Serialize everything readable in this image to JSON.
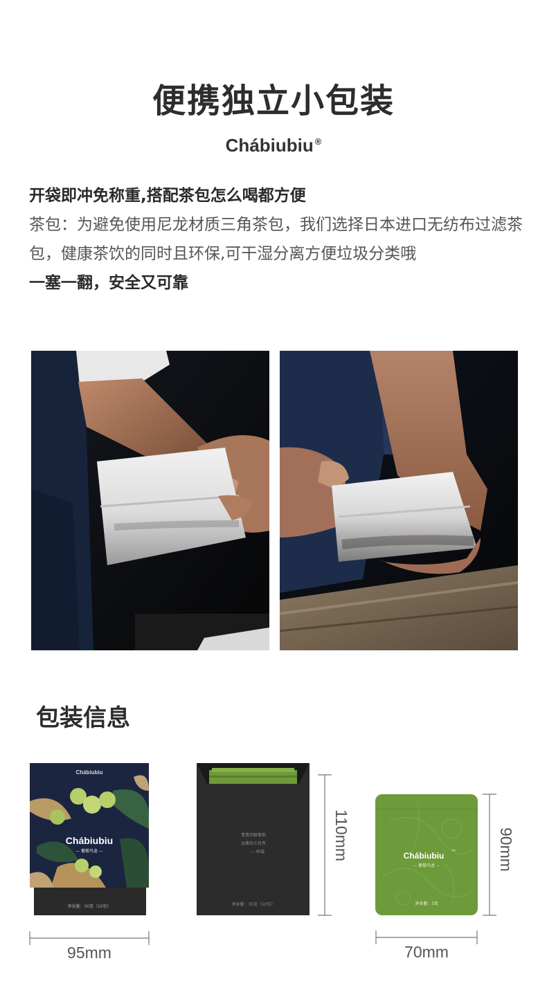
{
  "header": {
    "title": "便携独立小包装",
    "brand": "Chábiubiu",
    "brand_mark": "®"
  },
  "intro": {
    "headline": "开袋即冲免称重,搭配茶包怎么喝都方便",
    "body": "茶包：为避免使用尼龙材质三角茶包，我们选择日本进口无纺布过滤茶包，健康茶饮的同时且环保,可干湿分离方便垃圾分类哦",
    "tagline": "一塞一翻，安全又可靠"
  },
  "photos": [
    {
      "name": "hand-holding-tea-bag-photo"
    },
    {
      "name": "hands-opening-tea-bag-photo"
    }
  ],
  "packaging": {
    "title": "包装信息",
    "box_front": {
      "brand": "Chábiubiu",
      "logo": "Chábiubiu",
      "subtitle": "— 葡萄乌龙 —",
      "net": "净含量：30克（10包）"
    },
    "box_open": {
      "poem_lines": [
        "青青的野葡萄",
        "淡黄的小月亮",
        "— 树城"
      ],
      "net": "净含量：30克（10包）"
    },
    "sachet": {
      "logo": "Chábiubiu",
      "tm": "™",
      "subtitle": "— 葡萄乌龙 —",
      "net": "净含量：3克"
    },
    "dimensions": {
      "box_width": "95mm",
      "box_height": "110mm",
      "sachet_height": "90mm",
      "sachet_width": "70mm"
    }
  },
  "colors": {
    "box_navy": "#1b2540",
    "box_dark": "#2a2a2a",
    "sachet_green": "#6d9a3a",
    "grape_green": "#b7cf6a"
  }
}
